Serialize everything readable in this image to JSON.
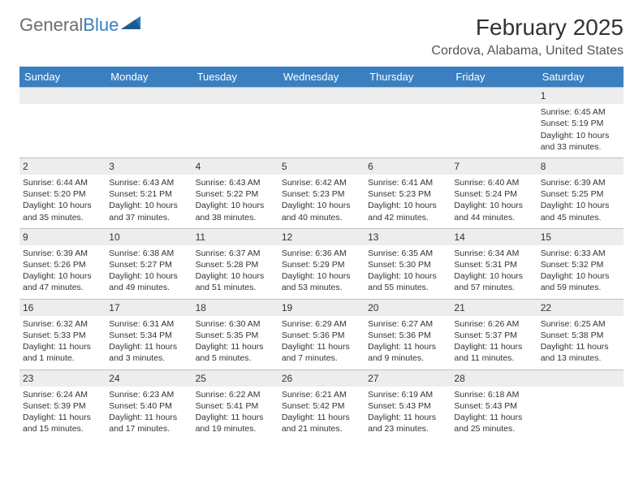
{
  "brand": {
    "part1": "General",
    "part2": "Blue"
  },
  "title": "February 2025",
  "location": "Cordova, Alabama, United States",
  "colors": {
    "header_bg": "#3a7fc0",
    "header_text": "#ffffff",
    "daynum_bg": "#ededed",
    "border": "#bfbfbf",
    "text": "#333333",
    "logo_gray": "#6e6e6e",
    "logo_blue": "#3a7fc0",
    "page_bg": "#ffffff"
  },
  "typography": {
    "title_fontsize": 28,
    "location_fontsize": 16,
    "weekday_fontsize": 13,
    "daynum_fontsize": 12,
    "cell_fontsize": 10.5
  },
  "weekdays": [
    "Sunday",
    "Monday",
    "Tuesday",
    "Wednesday",
    "Thursday",
    "Friday",
    "Saturday"
  ],
  "weeks": [
    [
      {
        "day": "",
        "sunrise": "",
        "sunset": "",
        "daylight": ""
      },
      {
        "day": "",
        "sunrise": "",
        "sunset": "",
        "daylight": ""
      },
      {
        "day": "",
        "sunrise": "",
        "sunset": "",
        "daylight": ""
      },
      {
        "day": "",
        "sunrise": "",
        "sunset": "",
        "daylight": ""
      },
      {
        "day": "",
        "sunrise": "",
        "sunset": "",
        "daylight": ""
      },
      {
        "day": "",
        "sunrise": "",
        "sunset": "",
        "daylight": ""
      },
      {
        "day": "1",
        "sunrise": "Sunrise: 6:45 AM",
        "sunset": "Sunset: 5:19 PM",
        "daylight": "Daylight: 10 hours and 33 minutes."
      }
    ],
    [
      {
        "day": "2",
        "sunrise": "Sunrise: 6:44 AM",
        "sunset": "Sunset: 5:20 PM",
        "daylight": "Daylight: 10 hours and 35 minutes."
      },
      {
        "day": "3",
        "sunrise": "Sunrise: 6:43 AM",
        "sunset": "Sunset: 5:21 PM",
        "daylight": "Daylight: 10 hours and 37 minutes."
      },
      {
        "day": "4",
        "sunrise": "Sunrise: 6:43 AM",
        "sunset": "Sunset: 5:22 PM",
        "daylight": "Daylight: 10 hours and 38 minutes."
      },
      {
        "day": "5",
        "sunrise": "Sunrise: 6:42 AM",
        "sunset": "Sunset: 5:23 PM",
        "daylight": "Daylight: 10 hours and 40 minutes."
      },
      {
        "day": "6",
        "sunrise": "Sunrise: 6:41 AM",
        "sunset": "Sunset: 5:23 PM",
        "daylight": "Daylight: 10 hours and 42 minutes."
      },
      {
        "day": "7",
        "sunrise": "Sunrise: 6:40 AM",
        "sunset": "Sunset: 5:24 PM",
        "daylight": "Daylight: 10 hours and 44 minutes."
      },
      {
        "day": "8",
        "sunrise": "Sunrise: 6:39 AM",
        "sunset": "Sunset: 5:25 PM",
        "daylight": "Daylight: 10 hours and 45 minutes."
      }
    ],
    [
      {
        "day": "9",
        "sunrise": "Sunrise: 6:39 AM",
        "sunset": "Sunset: 5:26 PM",
        "daylight": "Daylight: 10 hours and 47 minutes."
      },
      {
        "day": "10",
        "sunrise": "Sunrise: 6:38 AM",
        "sunset": "Sunset: 5:27 PM",
        "daylight": "Daylight: 10 hours and 49 minutes."
      },
      {
        "day": "11",
        "sunrise": "Sunrise: 6:37 AM",
        "sunset": "Sunset: 5:28 PM",
        "daylight": "Daylight: 10 hours and 51 minutes."
      },
      {
        "day": "12",
        "sunrise": "Sunrise: 6:36 AM",
        "sunset": "Sunset: 5:29 PM",
        "daylight": "Daylight: 10 hours and 53 minutes."
      },
      {
        "day": "13",
        "sunrise": "Sunrise: 6:35 AM",
        "sunset": "Sunset: 5:30 PM",
        "daylight": "Daylight: 10 hours and 55 minutes."
      },
      {
        "day": "14",
        "sunrise": "Sunrise: 6:34 AM",
        "sunset": "Sunset: 5:31 PM",
        "daylight": "Daylight: 10 hours and 57 minutes."
      },
      {
        "day": "15",
        "sunrise": "Sunrise: 6:33 AM",
        "sunset": "Sunset: 5:32 PM",
        "daylight": "Daylight: 10 hours and 59 minutes."
      }
    ],
    [
      {
        "day": "16",
        "sunrise": "Sunrise: 6:32 AM",
        "sunset": "Sunset: 5:33 PM",
        "daylight": "Daylight: 11 hours and 1 minute."
      },
      {
        "day": "17",
        "sunrise": "Sunrise: 6:31 AM",
        "sunset": "Sunset: 5:34 PM",
        "daylight": "Daylight: 11 hours and 3 minutes."
      },
      {
        "day": "18",
        "sunrise": "Sunrise: 6:30 AM",
        "sunset": "Sunset: 5:35 PM",
        "daylight": "Daylight: 11 hours and 5 minutes."
      },
      {
        "day": "19",
        "sunrise": "Sunrise: 6:29 AM",
        "sunset": "Sunset: 5:36 PM",
        "daylight": "Daylight: 11 hours and 7 minutes."
      },
      {
        "day": "20",
        "sunrise": "Sunrise: 6:27 AM",
        "sunset": "Sunset: 5:36 PM",
        "daylight": "Daylight: 11 hours and 9 minutes."
      },
      {
        "day": "21",
        "sunrise": "Sunrise: 6:26 AM",
        "sunset": "Sunset: 5:37 PM",
        "daylight": "Daylight: 11 hours and 11 minutes."
      },
      {
        "day": "22",
        "sunrise": "Sunrise: 6:25 AM",
        "sunset": "Sunset: 5:38 PM",
        "daylight": "Daylight: 11 hours and 13 minutes."
      }
    ],
    [
      {
        "day": "23",
        "sunrise": "Sunrise: 6:24 AM",
        "sunset": "Sunset: 5:39 PM",
        "daylight": "Daylight: 11 hours and 15 minutes."
      },
      {
        "day": "24",
        "sunrise": "Sunrise: 6:23 AM",
        "sunset": "Sunset: 5:40 PM",
        "daylight": "Daylight: 11 hours and 17 minutes."
      },
      {
        "day": "25",
        "sunrise": "Sunrise: 6:22 AM",
        "sunset": "Sunset: 5:41 PM",
        "daylight": "Daylight: 11 hours and 19 minutes."
      },
      {
        "day": "26",
        "sunrise": "Sunrise: 6:21 AM",
        "sunset": "Sunset: 5:42 PM",
        "daylight": "Daylight: 11 hours and 21 minutes."
      },
      {
        "day": "27",
        "sunrise": "Sunrise: 6:19 AM",
        "sunset": "Sunset: 5:43 PM",
        "daylight": "Daylight: 11 hours and 23 minutes."
      },
      {
        "day": "28",
        "sunrise": "Sunrise: 6:18 AM",
        "sunset": "Sunset: 5:43 PM",
        "daylight": "Daylight: 11 hours and 25 minutes."
      },
      {
        "day": "",
        "sunrise": "",
        "sunset": "",
        "daylight": ""
      }
    ]
  ]
}
